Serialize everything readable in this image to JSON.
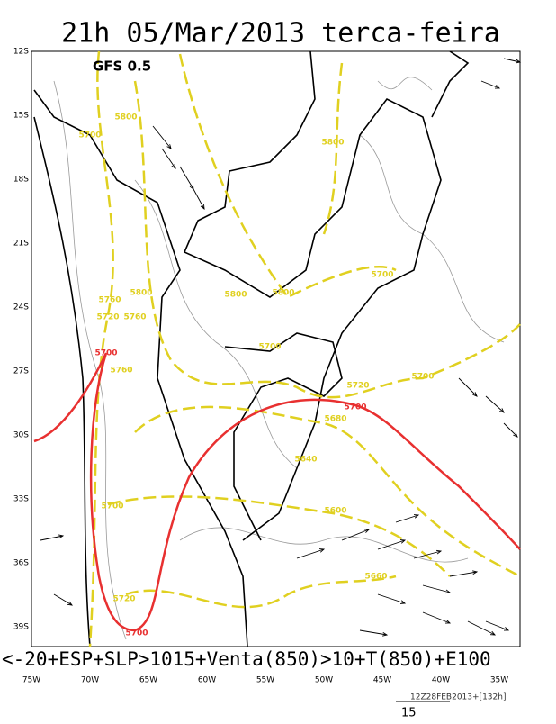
{
  "title": "21h 05/Mar/2013 terca-feira",
  "model": "GFS 0.5",
  "lat_labels": [
    "12S",
    "15S",
    "18S",
    "21S",
    "24S",
    "27S",
    "30S",
    "33S",
    "36S",
    "39S"
  ],
  "lon_labels": [
    "75W",
    "70W",
    "65W",
    "60W",
    "55W",
    "50W",
    "45W",
    "40W",
    "35W"
  ],
  "contour_labels": [
    {
      "text": "5800",
      "color": "#e0d020"
    },
    {
      "text": "5700",
      "color": "#e0d020"
    },
    {
      "text": "5800",
      "color": "#e0d020"
    },
    {
      "text": "5800",
      "color": "#e0d020"
    },
    {
      "text": "5800",
      "color": "#e0d020"
    },
    {
      "text": "5760",
      "color": "#e0d020"
    },
    {
      "text": "5800",
      "color": "#e0d020"
    },
    {
      "text": "5720",
      "color": "#e0d020"
    },
    {
      "text": "5760",
      "color": "#e0d020"
    },
    {
      "text": "5700",
      "color": "#e0d020"
    },
    {
      "text": "5700",
      "color": "#e83030"
    },
    {
      "text": "5760",
      "color": "#e0d020"
    },
    {
      "text": "5700",
      "color": "#e0d020"
    },
    {
      "text": "5720",
      "color": "#e0d020"
    },
    {
      "text": "5700",
      "color": "#e83030"
    },
    {
      "text": "5680",
      "color": "#e0d020"
    },
    {
      "text": "5640",
      "color": "#e0d020"
    },
    {
      "text": "5700",
      "color": "#e0d020"
    },
    {
      "text": "5600",
      "color": "#e0d020"
    },
    {
      "text": "5660",
      "color": "#e0d020"
    },
    {
      "text": "5720",
      "color": "#e0d020"
    },
    {
      "text": "5700",
      "color": "#e83030"
    },
    {
      "text": "5700",
      "color": "#e0d020"
    }
  ],
  "caption": "<-20+ESP+SLP>1015+Venta(850)>10+T(850)+E100",
  "footer": "12Z28FEB2013+[132h]",
  "vector_scale": "15"
}
